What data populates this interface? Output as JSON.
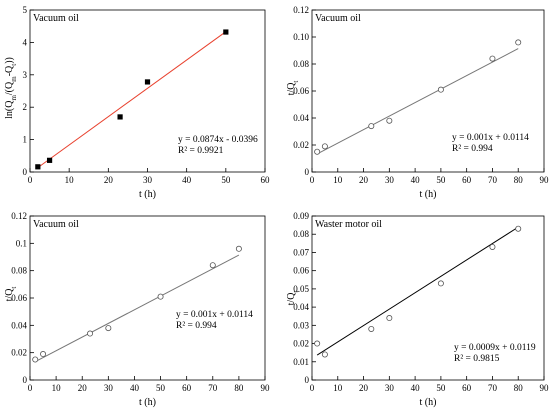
{
  "chart_data": [
    {
      "type": "scatter",
      "title": "Vacuum oil",
      "xlabel": "t (h)",
      "ylabel": "ln(Q_m/(Q_m-Q_t))",
      "xlim": [
        0,
        60
      ],
      "ylim": [
        0,
        5
      ],
      "xticks": [
        "0",
        "10",
        "20",
        "30",
        "40",
        "50",
        "60"
      ],
      "yticks": [
        "0",
        "1",
        "2",
        "3",
        "4",
        "5"
      ],
      "marker": "filled-square",
      "fit_color": "#e8412e",
      "x": [
        2,
        5,
        23,
        30,
        50
      ],
      "y": [
        0.16,
        0.36,
        1.7,
        2.78,
        4.32
      ],
      "fit": {
        "slope": 0.0874,
        "intercept": -0.0396,
        "x_range": [
          2,
          50
        ]
      },
      "equation": "y = 0.0874x - 0.0396",
      "r2": "R² = 0.9921"
    },
    {
      "type": "scatter",
      "title": "Vacuum oil",
      "xlabel": "t (h)",
      "ylabel": "t/Q_t",
      "xlim": [
        0,
        90
      ],
      "ylim": [
        0,
        0.12
      ],
      "xticks": [
        "0",
        "10",
        "20",
        "30",
        "40",
        "50",
        "60",
        "70",
        "80",
        "90"
      ],
      "yticks": [
        "0",
        "0.02",
        "0.04",
        "0.06",
        "0.08",
        "0.10",
        "0.12"
      ],
      "marker": "open-circle",
      "fit_color": "#777777",
      "x": [
        2,
        5,
        23,
        30,
        50,
        70,
        80
      ],
      "y": [
        0.015,
        0.019,
        0.034,
        0.038,
        0.061,
        0.084,
        0.096
      ],
      "fit": {
        "slope": 0.001,
        "intercept": 0.0114,
        "x_range": [
          2,
          80
        ]
      },
      "equation": "y = 0.001x + 0.0114",
      "r2": "R² = 0.994"
    },
    {
      "type": "scatter",
      "title": "Vacuum oil",
      "xlabel": "t (h)",
      "ylabel": "t/Q_t",
      "xlim": [
        0,
        90
      ],
      "ylim": [
        0,
        0.12
      ],
      "xticks": [
        "0",
        "10",
        "20",
        "30",
        "40",
        "50",
        "60",
        "70",
        "80",
        "90"
      ],
      "yticks": [
        "0",
        "0.02",
        "0.04",
        "0.06",
        "0.08",
        "0.1",
        "0.12"
      ],
      "marker": "open-circle",
      "fit_color": "#777777",
      "x": [
        2,
        5,
        23,
        30,
        50,
        70,
        80
      ],
      "y": [
        0.015,
        0.019,
        0.034,
        0.038,
        0.061,
        0.084,
        0.096
      ],
      "fit": {
        "slope": 0.001,
        "intercept": 0.0114,
        "x_range": [
          2,
          80
        ]
      },
      "equation": "y = 0.001x + 0.0114",
      "r2": "R² = 0.994"
    },
    {
      "type": "scatter",
      "title": "Waster motor oil",
      "xlabel": "t (h)",
      "ylabel": "t/Q_t",
      "xlim": [
        0,
        90
      ],
      "ylim": [
        0,
        0.09
      ],
      "xticks": [
        "0",
        "10",
        "20",
        "30",
        "40",
        "50",
        "60",
        "70",
        "80",
        "90"
      ],
      "yticks": [
        "0",
        "0.01",
        "0.02",
        "0.03",
        "0.04",
        "0.05",
        "0.06",
        "0.07",
        "0.08",
        "0.09"
      ],
      "marker": "open-circle",
      "fit_color": "#000000",
      "x": [
        2,
        5,
        23,
        30,
        50,
        70,
        80
      ],
      "y": [
        0.02,
        0.014,
        0.028,
        0.034,
        0.053,
        0.073,
        0.083
      ],
      "fit": {
        "slope": 0.0009,
        "intercept": 0.0119,
        "x_range": [
          2,
          80
        ]
      },
      "equation": "y = 0.0009x + 0.0119",
      "r2": "R² = 0.9815"
    }
  ]
}
